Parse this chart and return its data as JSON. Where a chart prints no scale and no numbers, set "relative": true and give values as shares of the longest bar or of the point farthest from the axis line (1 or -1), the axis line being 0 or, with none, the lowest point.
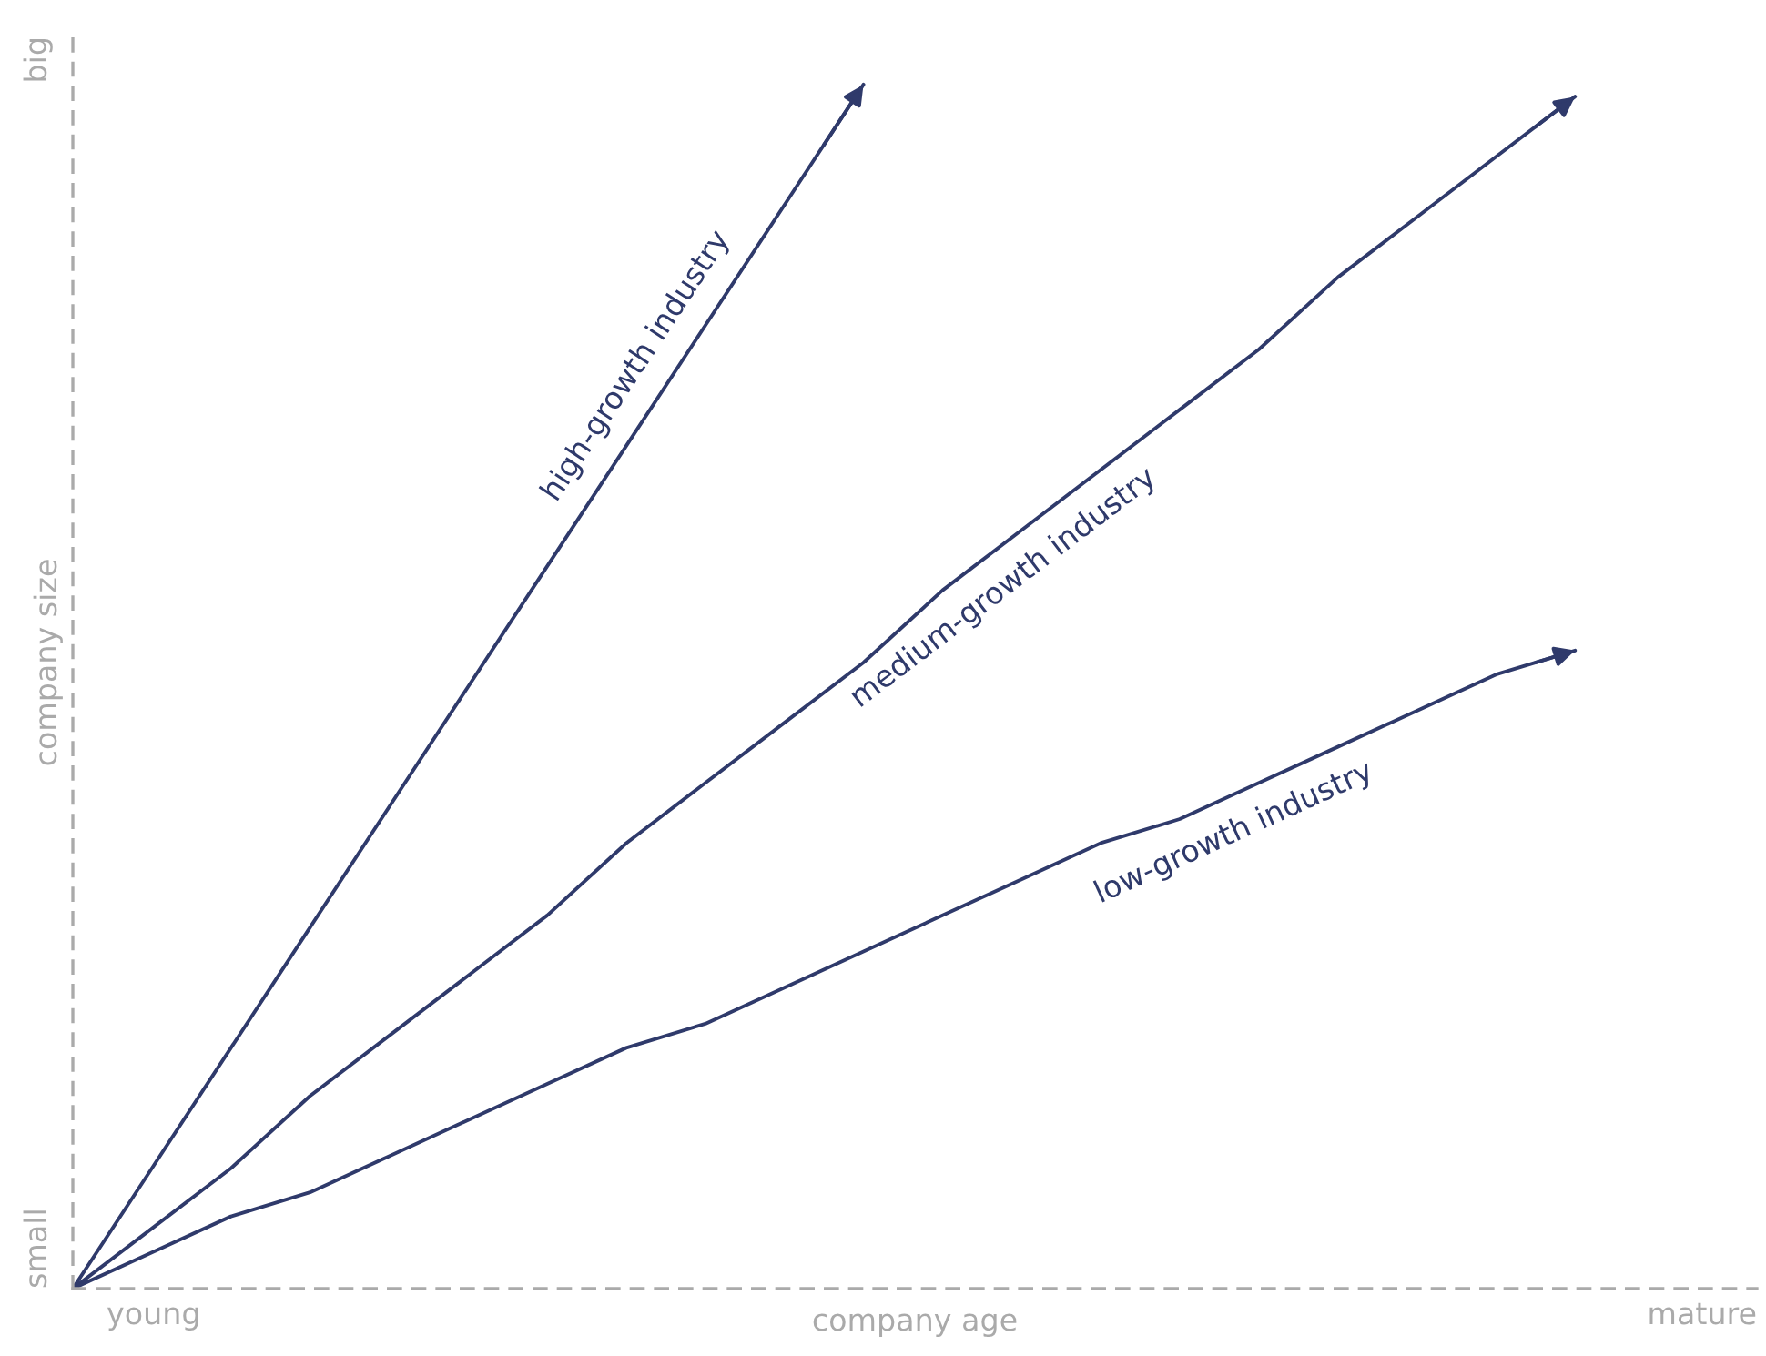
{
  "chart_data": {
    "type": "line",
    "relative": true,
    "xlabel": "company age",
    "ylabel": "company size",
    "annotations": [
      "young",
      "mature",
      "small",
      "big"
    ],
    "categories": [
      null,
      null,
      null,
      null,
      null,
      null,
      null,
      null,
      null,
      null,
      null,
      null,
      null,
      null,
      null,
      null,
      null,
      null,
      null,
      null
    ],
    "series": [
      {
        "name": "high-growth industry",
        "color": "#2f3a6b",
        "values": [
          0,
          0.1,
          0.2,
          0.3,
          0.4,
          0.5,
          0.6,
          0.7,
          0.8,
          0.9,
          1.0,
          null,
          null,
          null,
          null,
          null,
          null,
          null,
          null,
          null
        ]
      },
      {
        "name": "medium-growth industry",
        "color": "#2f3a6b",
        "values": [
          0,
          0.05,
          0.1,
          0.16,
          0.21,
          0.26,
          0.31,
          0.37,
          0.42,
          0.47,
          0.52,
          0.58,
          0.63,
          0.68,
          0.73,
          0.78,
          0.84,
          0.89,
          0.94,
          0.99
        ]
      },
      {
        "name": "low-growth industry",
        "color": "#2f3a6b",
        "values": [
          0,
          0.03,
          0.06,
          0.08,
          0.11,
          0.14,
          0.17,
          0.2,
          0.22,
          0.25,
          0.28,
          0.31,
          0.34,
          0.37,
          0.39,
          0.42,
          0.45,
          0.48,
          0.51,
          0.53
        ]
      }
    ],
    "legend": false,
    "grid": false
  }
}
